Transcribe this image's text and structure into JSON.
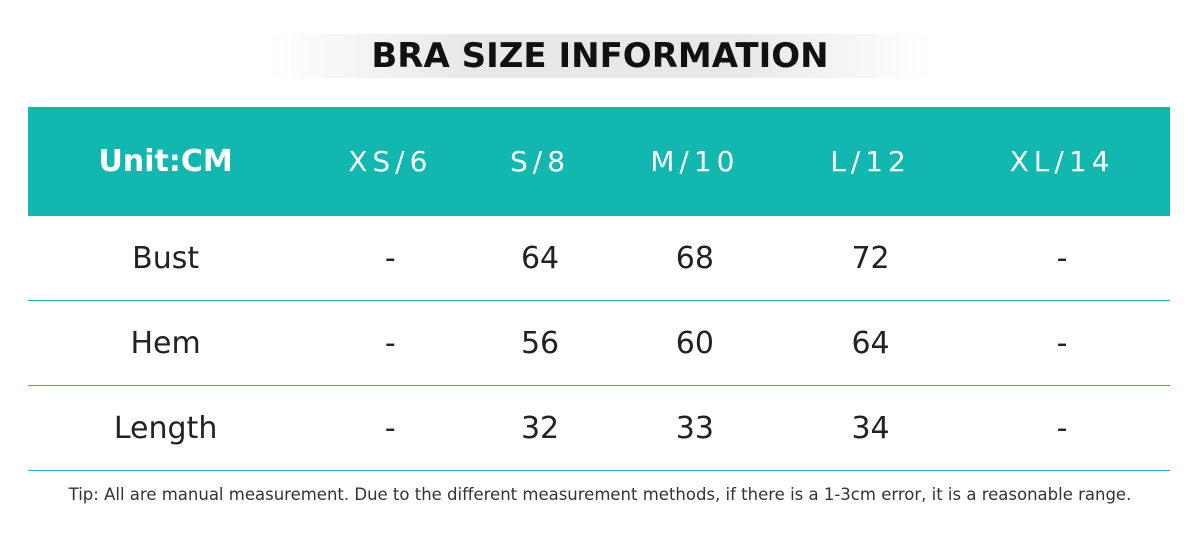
{
  "header": {
    "title": "BRA SIZE INFORMATION"
  },
  "table": {
    "columns": [
      "Unit:CM",
      "XS/6",
      "S/8",
      "M/10",
      "L/12",
      "XL/14"
    ],
    "rows": [
      [
        "Bust",
        "-",
        "64",
        "68",
        "72",
        "-"
      ],
      [
        "Hem",
        "-",
        "56",
        "60",
        "64",
        "-"
      ],
      [
        "Length",
        "-",
        "32",
        "33",
        "34",
        "-"
      ]
    ]
  },
  "footer": {
    "tip": "Tip: All are manual measurement. Due to the different measurement methods, if there is a 1-3cm error, it is a reasonable range."
  }
}
